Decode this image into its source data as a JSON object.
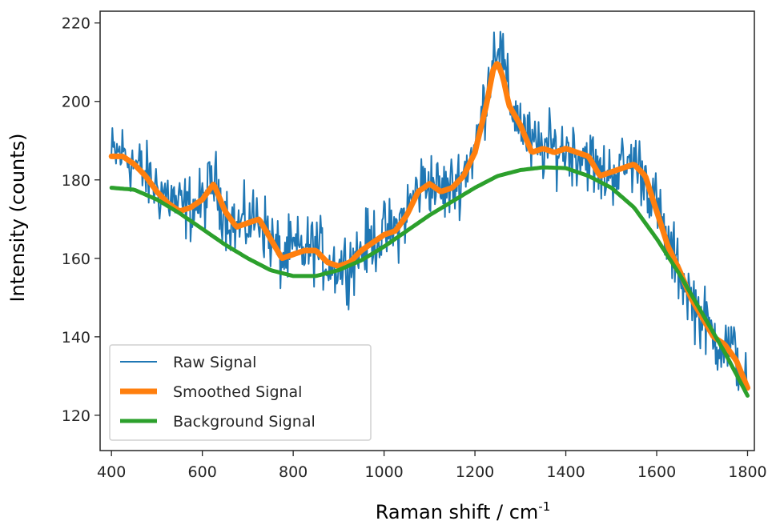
{
  "chart_data": {
    "type": "line",
    "title": "",
    "xlabel": "Raman shift / cm",
    "xlabel_superscript": "-1",
    "ylabel": "Intensity (counts)",
    "xlim": [
      375,
      1815
    ],
    "ylim": [
      111,
      223
    ],
    "xticks": [
      400,
      600,
      800,
      1000,
      1200,
      1400,
      1600,
      1800
    ],
    "yticks": [
      120,
      140,
      160,
      180,
      200,
      220
    ],
    "legend_position": "lower-left",
    "series": [
      {
        "name": "Raw Signal",
        "color": "#1f77b4",
        "noise_amplitude": 6,
        "x": [
          400,
          425,
          450,
          475,
          500,
          525,
          550,
          575,
          600,
          625,
          650,
          675,
          700,
          725,
          750,
          775,
          800,
          825,
          850,
          875,
          900,
          925,
          950,
          975,
          1000,
          1025,
          1050,
          1075,
          1100,
          1125,
          1150,
          1175,
          1200,
          1225,
          1240,
          1250,
          1262,
          1275,
          1300,
          1325,
          1350,
          1375,
          1400,
          1425,
          1450,
          1475,
          1500,
          1525,
          1550,
          1575,
          1600,
          1625,
          1650,
          1675,
          1700,
          1725,
          1750,
          1775,
          1800
        ],
        "y": [
          186,
          187,
          184,
          181,
          178,
          176,
          173,
          173,
          174,
          180,
          172,
          168,
          169,
          171,
          165,
          160,
          162,
          162,
          163,
          159,
          158,
          159,
          162,
          165,
          166,
          167,
          172,
          178,
          180,
          177,
          178,
          182,
          188,
          202,
          212,
          216,
          210,
          200,
          195,
          188,
          188,
          188,
          188,
          187,
          186,
          181,
          182,
          183,
          185,
          181,
          173,
          163,
          157,
          150,
          145,
          140,
          138,
          135,
          128
        ]
      },
      {
        "name": "Smoothed Signal",
        "color": "#ff7f0e",
        "x": [
          400,
          425,
          450,
          475,
          500,
          525,
          550,
          575,
          600,
          625,
          650,
          675,
          700,
          725,
          750,
          775,
          800,
          825,
          850,
          875,
          900,
          925,
          950,
          975,
          1000,
          1025,
          1050,
          1075,
          1100,
          1125,
          1150,
          1175,
          1200,
          1225,
          1240,
          1250,
          1262,
          1275,
          1300,
          1325,
          1350,
          1375,
          1400,
          1425,
          1450,
          1475,
          1500,
          1525,
          1550,
          1575,
          1600,
          1625,
          1650,
          1675,
          1700,
          1725,
          1750,
          1775,
          1800
        ],
        "y": [
          186,
          186,
          184,
          181,
          177,
          174,
          172,
          173,
          175,
          179,
          172,
          168,
          169,
          170,
          165,
          160,
          161,
          162,
          162,
          159,
          158,
          159,
          162,
          164,
          166,
          167,
          171,
          177,
          179,
          177,
          178,
          181,
          187,
          199,
          208,
          210,
          206,
          199,
          194,
          187,
          188,
          187,
          188,
          187,
          186,
          181,
          182,
          183,
          184,
          181,
          172,
          163,
          157,
          150,
          145,
          140,
          138,
          134,
          127
        ]
      },
      {
        "name": "Background Signal",
        "color": "#2ca02c",
        "x": [
          400,
          450,
          500,
          550,
          600,
          650,
          700,
          750,
          800,
          850,
          900,
          950,
          1000,
          1050,
          1100,
          1150,
          1200,
          1250,
          1300,
          1350,
          1400,
          1450,
          1500,
          1550,
          1600,
          1650,
          1700,
          1750,
          1800
        ],
        "y": [
          178,
          177.5,
          175,
          171.5,
          167.5,
          163.5,
          160,
          157,
          155.5,
          155.5,
          157,
          159.5,
          163,
          167,
          171,
          174.5,
          178,
          181,
          182.5,
          183.2,
          183,
          181,
          178,
          173,
          165,
          156,
          146,
          136,
          125
        ]
      }
    ]
  }
}
